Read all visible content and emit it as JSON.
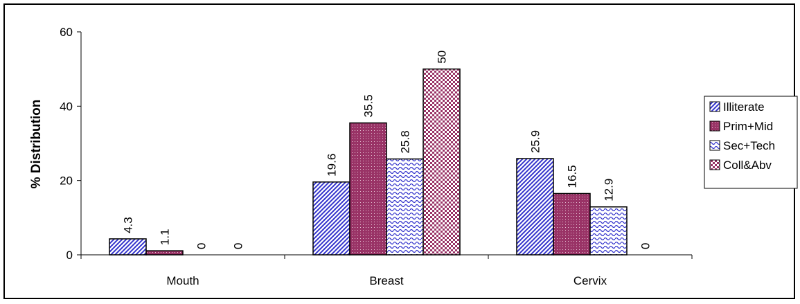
{
  "chart_data": {
    "type": "bar",
    "categories": [
      "Mouth",
      "Breast",
      "Cervix"
    ],
    "series": [
      {
        "name": "Illiterate",
        "values": [
          4.3,
          19.6,
          25.9
        ]
      },
      {
        "name": "Prim+Mid",
        "values": [
          1.1,
          35.5,
          16.5
        ]
      },
      {
        "name": "Sec+Tech",
        "values": [
          0,
          25.8,
          12.9
        ]
      },
      {
        "name": "Coll&Abv",
        "values": [
          0,
          50,
          0
        ]
      }
    ],
    "title": "",
    "xlabel": "",
    "ylabel": "% Distribution",
    "ylim": [
      0,
      60
    ],
    "yticks": [
      0,
      20,
      40,
      60
    ],
    "data_labels": true,
    "legend_position": "right",
    "grid": false,
    "colors": [
      "#3333cc",
      "#993366",
      "#3333cc",
      "#993366"
    ],
    "patterns": [
      "diagonal-stripes",
      "dotted",
      "waves",
      "checkerboard"
    ]
  }
}
